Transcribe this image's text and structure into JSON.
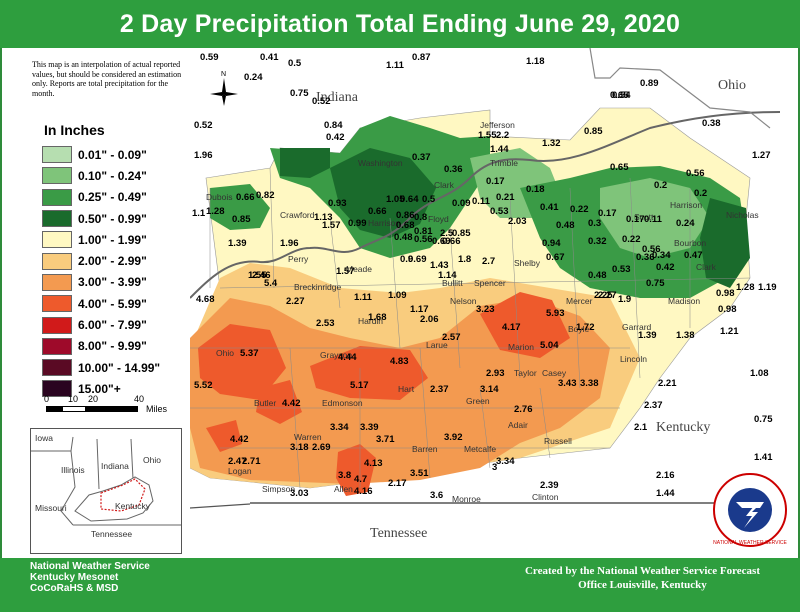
{
  "title": "2 Day Precipitation Total Ending June 29, 2020",
  "note": "This map is an interpolation of actual reported values, but should be considered an estimation only. Reports are total precipitation for the month.",
  "legend": {
    "title": "In Inches",
    "items": [
      {
        "label": "0.01\" - 0.09\"",
        "color": "#b6deb0"
      },
      {
        "label": "0.10\" - 0.24\"",
        "color": "#7fc47a"
      },
      {
        "label": "0.25\" - 0.49\"",
        "color": "#3a9b46"
      },
      {
        "label": "0.50\" - 0.99\"",
        "color": "#1a6b2c"
      },
      {
        "label": "1.00\" - 1.99\"",
        "color": "#fff8c2"
      },
      {
        "label": "2.00\" - 2.99\"",
        "color": "#f9cc7e"
      },
      {
        "label": "3.00\" - 3.99\"",
        "color": "#f39a50"
      },
      {
        "label": "4.00\" - 5.99\"",
        "color": "#ee5a2c"
      },
      {
        "label": "6.00\" - 7.99\"",
        "color": "#d11a1a"
      },
      {
        "label": "8.00\" - 9.99\"",
        "color": "#9e0a2a"
      },
      {
        "label": "10.00\" - 14.99\"",
        "color": "#5a0a24"
      },
      {
        "label": "15.00\"+",
        "color": "#2a0420"
      }
    ]
  },
  "scale": {
    "ticks": [
      "0",
      "10",
      "20",
      "40"
    ],
    "unit": "Miles"
  },
  "compass_label": "N",
  "states": {
    "indiana": "Indiana",
    "ohio": "Ohio",
    "kentucky": "Kentucky",
    "tennessee": "Tennessee"
  },
  "inset": {
    "labels": [
      "Iowa",
      "Illinois",
      "Indiana",
      "Ohio",
      "Missouri",
      "Kentucky",
      "Tennessee"
    ]
  },
  "counties": [
    "Jefferson",
    "Trimble",
    "Washington",
    "Clark",
    "Floyd",
    "Harrison",
    "Crawford",
    "Dubois",
    "Perry",
    "Breckinridge",
    "Meade",
    "Hardin",
    "Grayson",
    "Ohio",
    "Butler",
    "Edmonson",
    "Hart",
    "Larue",
    "Nelson",
    "Bullitt",
    "Shelby",
    "Spencer",
    "Marion",
    "Taylor",
    "Green",
    "Adair",
    "Casey",
    "Russell",
    "Metcalfe",
    "Barren",
    "Allen",
    "Simpson",
    "Logan",
    "Warren",
    "Monroe",
    "Clinton",
    "Boyle",
    "Mercer",
    "Garrard",
    "Lincoln",
    "Madison",
    "Scott",
    "Harrison",
    "Bourbon",
    "Clark",
    "Nicholas"
  ],
  "values": [
    {
      "v": "0.59"
    },
    {
      "v": "0.41"
    },
    {
      "v": "0.5"
    },
    {
      "v": "0.87"
    },
    {
      "v": "1.11"
    },
    {
      "v": "1.18"
    },
    {
      "v": "0.24"
    },
    {
      "v": "0.75"
    },
    {
      "v": "0.52"
    },
    {
      "v": "0.52"
    },
    {
      "v": "1.96"
    },
    {
      "v": "0.84"
    },
    {
      "v": "0.42"
    },
    {
      "v": "1.55"
    },
    {
      "v": "2.2"
    },
    {
      "v": "1.32"
    },
    {
      "v": "0.85"
    },
    {
      "v": "0.65"
    },
    {
      "v": "0.89"
    },
    {
      "v": "0.54"
    },
    {
      "v": "0.38"
    },
    {
      "v": "1.27"
    },
    {
      "v": "0.37"
    },
    {
      "v": "1.44"
    },
    {
      "v": "0.36"
    },
    {
      "v": "0.17"
    },
    {
      "v": "0.18"
    },
    {
      "v": "0.65"
    },
    {
      "v": "0.56"
    },
    {
      "v": "0.2"
    },
    {
      "v": "0.2"
    },
    {
      "v": "0.66"
    },
    {
      "v": "0.82"
    },
    {
      "v": "1.28"
    },
    {
      "v": "0.85"
    },
    {
      "v": "1.1"
    },
    {
      "v": "1.13"
    },
    {
      "v": "0.93"
    },
    {
      "v": "1.05"
    },
    {
      "v": "0.64"
    },
    {
      "v": "0.5"
    },
    {
      "v": "0.11"
    },
    {
      "v": "0.21"
    },
    {
      "v": "0.09"
    },
    {
      "v": "0.53"
    },
    {
      "v": "0.41"
    },
    {
      "v": "0.22"
    },
    {
      "v": "0.17"
    },
    {
      "v": "0.48"
    },
    {
      "v": "0.3"
    },
    {
      "v": "0.17"
    },
    {
      "v": "0.11"
    },
    {
      "v": "0.24"
    },
    {
      "v": "0.66"
    },
    {
      "v": "0.86"
    },
    {
      "v": "0.8"
    },
    {
      "v": "0.68"
    },
    {
      "v": "0.99"
    },
    {
      "v": "0.81"
    },
    {
      "v": "2.5"
    },
    {
      "v": "0.85"
    },
    {
      "v": "0.66"
    },
    {
      "v": "2.03"
    },
    {
      "v": "0.32"
    },
    {
      "v": "0.22"
    },
    {
      "v": "0.56"
    },
    {
      "v": "0.48"
    },
    {
      "v": "0.56"
    },
    {
      "v": "0.69"
    },
    {
      "v": "0.69"
    },
    {
      "v": "1.43"
    },
    {
      "v": "1.8"
    },
    {
      "v": "0.94"
    },
    {
      "v": "0.67"
    },
    {
      "v": "0.36"
    },
    {
      "v": "0.34"
    },
    {
      "v": "0.47"
    },
    {
      "v": "1.39"
    },
    {
      "v": "1.96"
    },
    {
      "v": "1.57"
    },
    {
      "v": "0.9"
    },
    {
      "v": "2.7"
    },
    {
      "v": "0.53"
    },
    {
      "v": "0.42"
    },
    {
      "v": "0.48"
    },
    {
      "v": "1.55"
    },
    {
      "v": "2.46"
    },
    {
      "v": "5.4"
    },
    {
      "v": "1.57"
    },
    {
      "v": "1.14"
    },
    {
      "v": "0.75"
    },
    {
      "v": "2.27"
    },
    {
      "v": "0.98"
    },
    {
      "v": "1.28"
    },
    {
      "v": "1.19"
    },
    {
      "v": "4.68"
    },
    {
      "v": "2.27"
    },
    {
      "v": "1.11"
    },
    {
      "v": "1.09"
    },
    {
      "v": "3.23"
    },
    {
      "v": "2.25"
    },
    {
      "v": "1.9"
    },
    {
      "v": "0.98"
    },
    {
      "v": "1.17"
    },
    {
      "v": "2.53"
    },
    {
      "v": "1.68"
    },
    {
      "v": "2.06"
    },
    {
      "v": "5.93"
    },
    {
      "v": "4.17"
    },
    {
      "v": "1.72"
    },
    {
      "v": "1.39"
    },
    {
      "v": "1.38"
    },
    {
      "v": "1.21"
    },
    {
      "v": "2.57"
    },
    {
      "v": "5.04"
    },
    {
      "v": "5.37"
    },
    {
      "v": "4.44"
    },
    {
      "v": "4.83"
    },
    {
      "v": "2.93"
    },
    {
      "v": "5.52"
    },
    {
      "v": "5.17"
    },
    {
      "v": "2.37"
    },
    {
      "v": "3.14"
    },
    {
      "v": "3.43"
    },
    {
      "v": "3.38"
    },
    {
      "v": "2.21"
    },
    {
      "v": "1.08"
    },
    {
      "v": "4.42"
    },
    {
      "v": "2.76"
    },
    {
      "v": "2.37"
    },
    {
      "v": "3.34"
    },
    {
      "v": "3.39"
    },
    {
      "v": "0.75"
    },
    {
      "v": "2.1"
    },
    {
      "v": "4.42"
    },
    {
      "v": "3.71"
    },
    {
      "v": "3.92"
    },
    {
      "v": "3.18"
    },
    {
      "v": "2.69"
    },
    {
      "v": "2.47"
    },
    {
      "v": "2.71"
    },
    {
      "v": "4.13"
    },
    {
      "v": "3.34"
    },
    {
      "v": "1.41"
    },
    {
      "v": "3.8"
    },
    {
      "v": "4.7"
    },
    {
      "v": "3.51"
    },
    {
      "v": "3"
    },
    {
      "v": "2.16"
    },
    {
      "v": "2.17"
    },
    {
      "v": "2.39"
    },
    {
      "v": "4.16"
    },
    {
      "v": "3.03"
    },
    {
      "v": "3.6"
    },
    {
      "v": "1.44"
    }
  ],
  "footer": {
    "left": [
      "National Weather Service",
      "Kentucky Mesonet",
      "CoCoRaHS & MSD"
    ],
    "right": [
      "Created by the National Weather Service Forecast",
      "Office Louisville, Kentucky"
    ]
  },
  "logo_text": "NATIONAL WEATHER SERVICE"
}
